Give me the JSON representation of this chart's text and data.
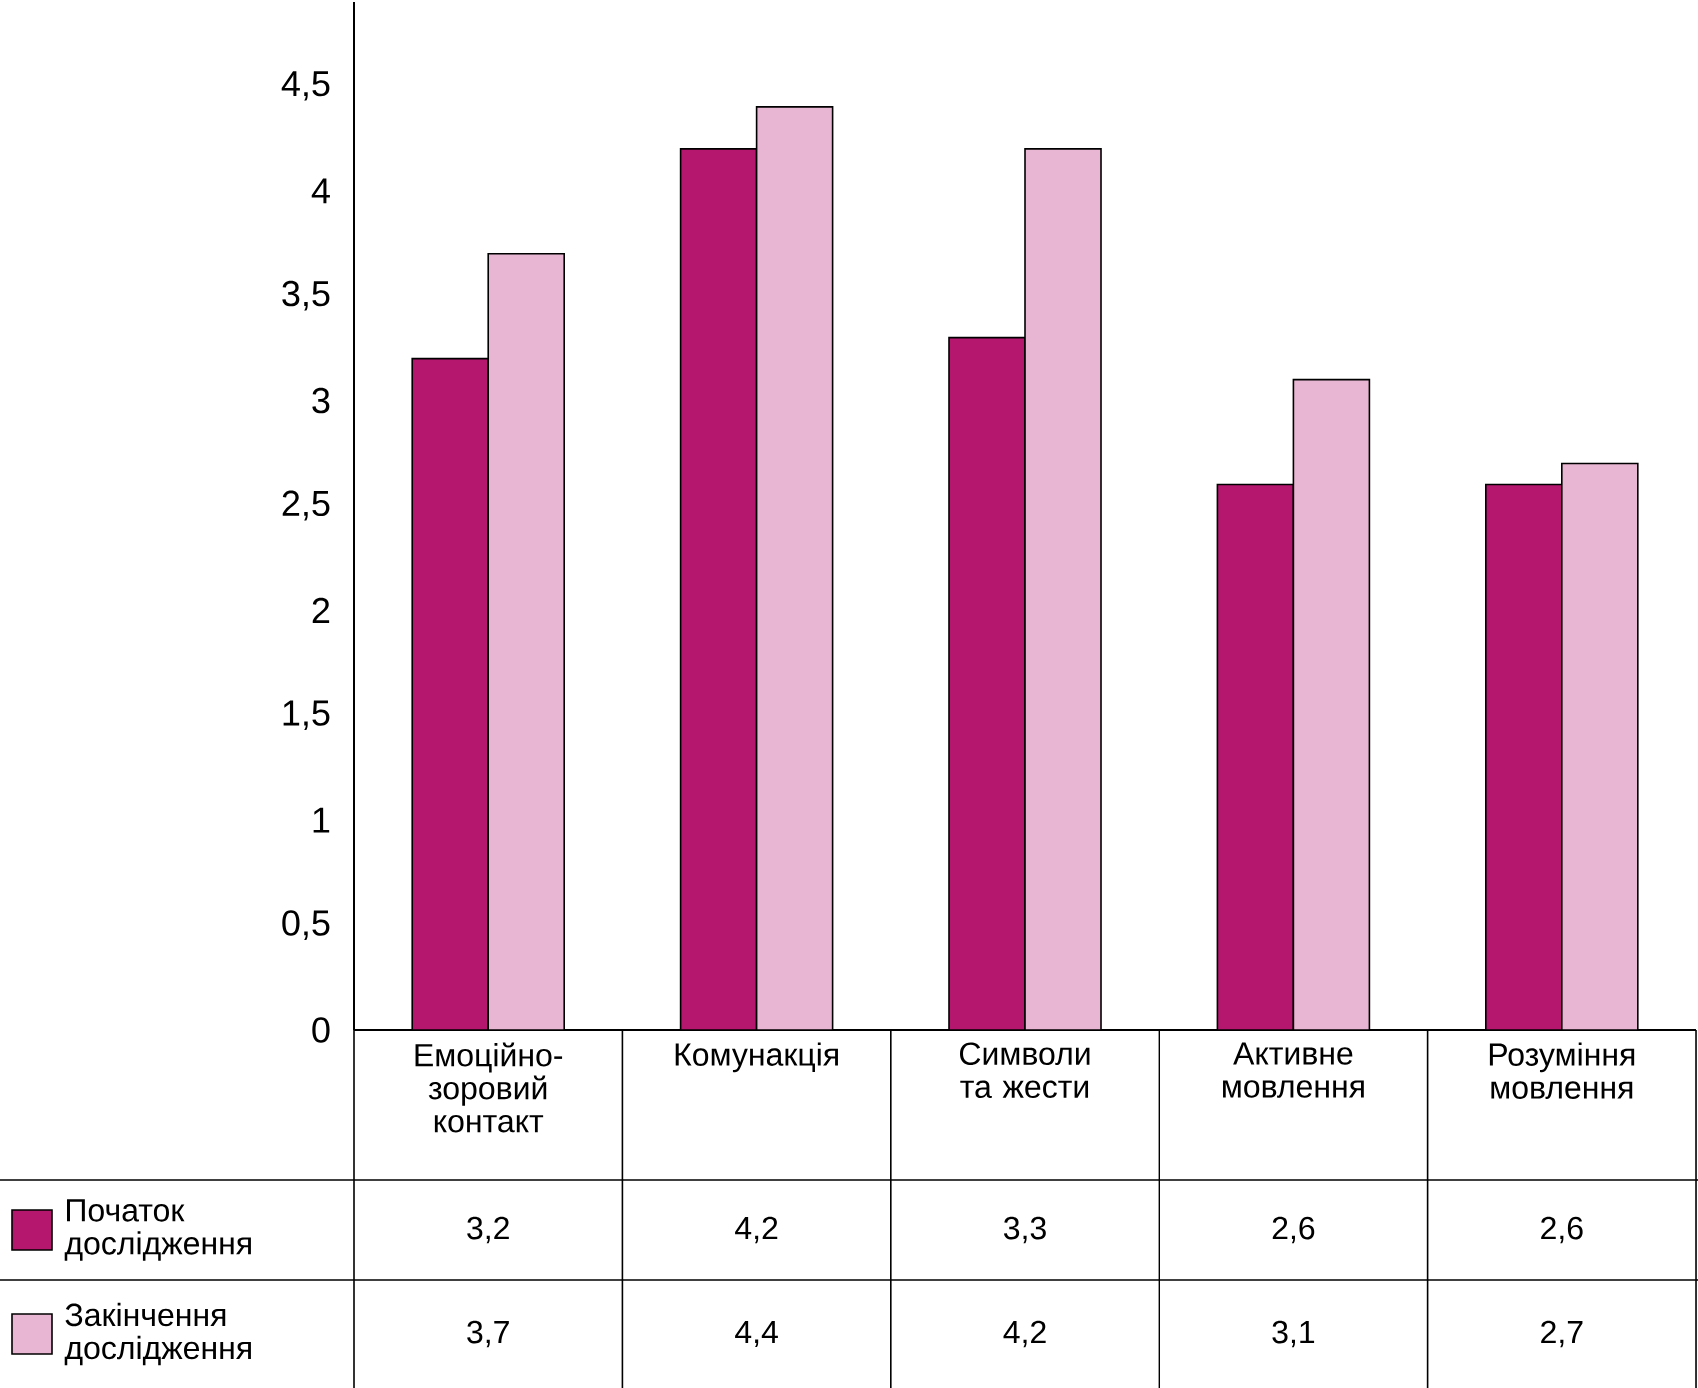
{
  "chart_data": {
    "type": "bar",
    "categories": [
      "Емоційно-зоровий контакт",
      "Комунакція",
      "Символи та жести",
      "Активне мовлення",
      "Розуміння мовлення"
    ],
    "series": [
      {
        "name": "Початок дослідження",
        "color": "#b5176f",
        "values": [
          3.2,
          4.2,
          3.3,
          2.6,
          2.6
        ],
        "value_labels": [
          "3,2",
          "4,2",
          "3,3",
          "2,6",
          "2,6"
        ]
      },
      {
        "name": "Закінчення дослідження",
        "color": "#e8b6d2",
        "values": [
          3.7,
          4.4,
          4.2,
          3.1,
          2.7
        ],
        "value_labels": [
          "3,7",
          "4,4",
          "4,2",
          "3,1",
          "2,7"
        ]
      }
    ],
    "ylim": [
      0,
      4.9
    ],
    "yticks": [
      0,
      {
        "value": 0.5,
        "label": "0,5"
      },
      1,
      {
        "value": 1.5,
        "label": "1,5"
      },
      2,
      {
        "value": 2.5,
        "label": "2,5"
      },
      3,
      {
        "value": 3.5,
        "label": "3,5"
      },
      4,
      {
        "value": 4.5,
        "label": "4,5"
      }
    ],
    "legend": "bottom left",
    "grid": false
  }
}
